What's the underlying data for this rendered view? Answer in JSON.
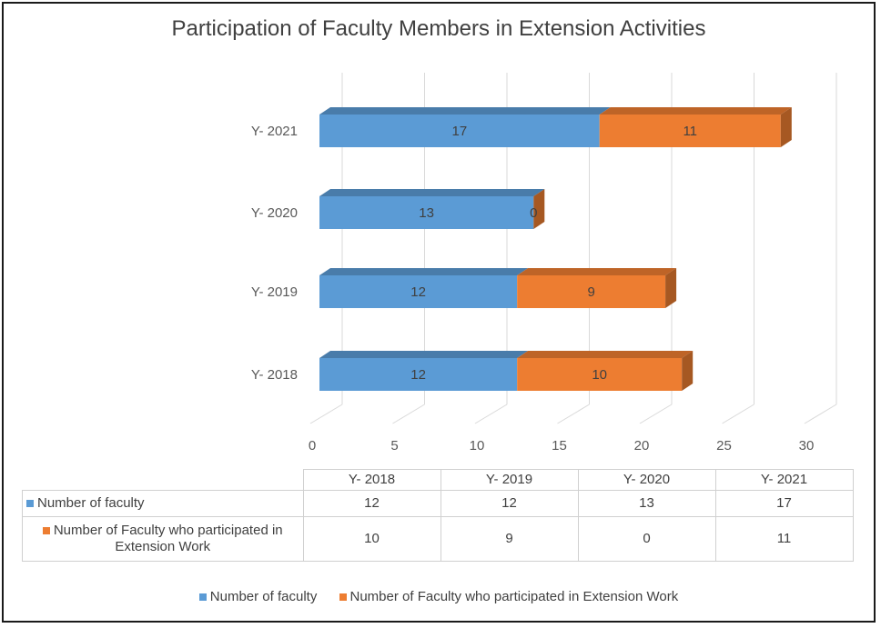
{
  "chart_data": {
    "type": "bar",
    "orientation": "horizontal",
    "stacked": true,
    "title": "Participation of Faculty Members in Extension Activities",
    "categories": [
      "Y- 2018",
      "Y- 2019",
      "Y- 2020",
      "Y- 2021"
    ],
    "series": [
      {
        "name": "Number of faculty",
        "color": "#5B9BD5",
        "values": [
          12,
          12,
          13,
          17
        ]
      },
      {
        "name": "Number of Faculty who participated in Extension Work",
        "color": "#ED7D31",
        "values": [
          10,
          9,
          0,
          11
        ]
      }
    ],
    "xlim": [
      0,
      30
    ],
    "xticks": [
      0,
      5,
      10,
      15,
      20,
      25,
      30
    ],
    "grid": true,
    "legend": "bottom",
    "data_table": {
      "headers": [
        "Y- 2018",
        "Y- 2019",
        "Y- 2020",
        "Y- 2021"
      ],
      "rows": [
        {
          "label": "Number of faculty",
          "values": [
            "12",
            "12",
            "13",
            "17"
          ]
        },
        {
          "label": "Number of Faculty who participated in Extension Work",
          "label_lines": [
            "Number of Faculty who participated in",
            "Extension Work"
          ],
          "values": [
            "10",
            "9",
            "0",
            "11"
          ]
        }
      ]
    }
  }
}
